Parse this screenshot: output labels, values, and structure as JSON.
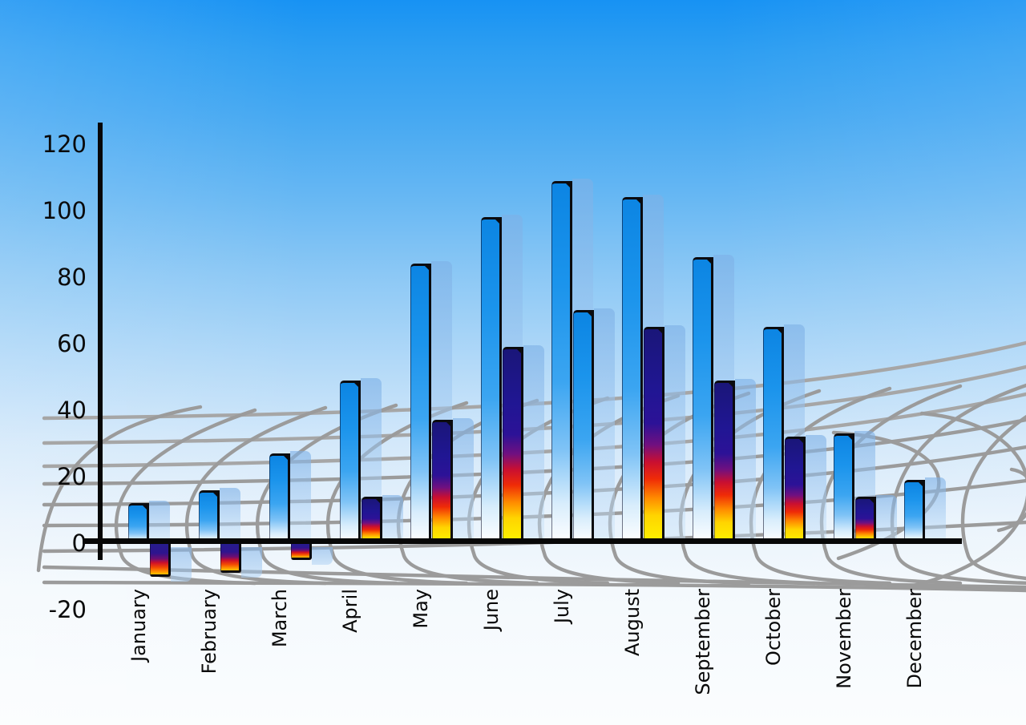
{
  "chart_data": {
    "type": "bar",
    "title": "",
    "categories": [
      "January",
      "February",
      "March",
      "April",
      "May",
      "June",
      "July",
      "August",
      "September",
      "October",
      "November",
      "December"
    ],
    "series": [
      {
        "name": "primary-blue-bars",
        "values": [
          12,
          16,
          27,
          49,
          84,
          98,
          109,
          104,
          86,
          65,
          33,
          19
        ]
      },
      {
        "name": "secondary-accent-bars",
        "values": [
          -10,
          -9,
          -5,
          14,
          37,
          59,
          70,
          65,
          49,
          32,
          14,
          null
        ]
      }
    ],
    "series2_style": [
      "flame",
      "flame",
      "flame",
      "flame",
      "flame",
      "flame",
      "blue",
      "flame",
      "flame",
      "flame",
      "flame",
      null
    ],
    "ylim": [
      -20,
      120
    ],
    "yticks": [
      120,
      100,
      80,
      60,
      40,
      20,
      0,
      -20
    ],
    "xlabel": "",
    "ylabel": "",
    "legend": "none",
    "grid": "decorative gray curved perspective mesh behind bars",
    "x_tick_rotation_deg": 90
  },
  "colors": {
    "sky_top": "#1792f3",
    "sky_bottom": "#fbfdfe",
    "bar_blue": "#0d89e8",
    "bar_blue_fade": "#ffffff",
    "flame_navy": "#1e1694",
    "flame_red": "#d6101f",
    "flame_yellow": "#fdf400",
    "shadow_bar": "#9cc2ec",
    "axis": "#0a0a0a",
    "grid_line": "#9b9b9b",
    "label_text": "#0a0a0a"
  }
}
